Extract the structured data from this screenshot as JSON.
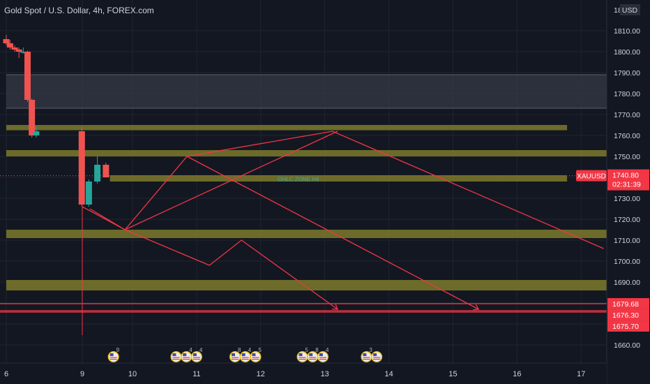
{
  "header": {
    "title": "Gold Spot / U.S. Dollar, 4h, FOREX.com",
    "currency": "USD",
    "axis_top_label": "18"
  },
  "colors": {
    "background": "#131722",
    "grid": "#1f2430",
    "axis_text": "#d1d4dc",
    "bull": "#26a69a",
    "bear": "#ef5350",
    "zone": "#7d7a2a",
    "supply_zone": "#363a45",
    "drawing": "#f23645",
    "label_red": "#f23645",
    "zone_text": "#2db2b7"
  },
  "chart_data": {
    "type": "candlestick",
    "symbol": "XAUUSD",
    "title": "Gold Spot / U.S. Dollar, 4h, FOREX.com",
    "ylim": [
      1652,
      1816
    ],
    "xlim": [
      6.0,
      17.35
    ],
    "y_ticks": [
      1660,
      1670,
      1680,
      1690,
      1700,
      1710,
      1720,
      1730,
      1740,
      1750,
      1760,
      1770,
      1780,
      1790,
      1800,
      1810
    ],
    "y_tick_labels": [
      "1660.00",
      "1670.00",
      "1680.00",
      "1690.00",
      "1700.00",
      "1710.00",
      "1720.00",
      "1730.00",
      "1740.00",
      "1750.00",
      "1760.00",
      "1770.00",
      "1780.00",
      "1790.00",
      "1800.00",
      "1810.00"
    ],
    "x_ticks": [
      6,
      9,
      10,
      11,
      12,
      13,
      14,
      15,
      16,
      17
    ],
    "x_tick_labels": [
      "6",
      "9",
      "10",
      "11",
      "12",
      "13",
      "14",
      "15",
      "16",
      "17"
    ],
    "candles": [
      {
        "x": 6.0,
        "open": 1806,
        "high": 1808,
        "low": 1803,
        "close": 1804
      },
      {
        "x": 6.15,
        "open": 1804,
        "high": 1805.5,
        "low": 1801,
        "close": 1802
      },
      {
        "x": 6.33,
        "open": 1802,
        "high": 1803,
        "low": 1800,
        "close": 1801
      },
      {
        "x": 6.5,
        "open": 1801,
        "high": 1802,
        "low": 1797,
        "close": 1800
      },
      {
        "x": 6.67,
        "open": 1800,
        "high": 1802,
        "low": 1799,
        "close": 1800
      },
      {
        "x": 6.84,
        "open": 1800,
        "high": 1800.5,
        "low": 1776,
        "close": 1777
      },
      {
        "x": 7.01,
        "open": 1777,
        "high": 1777.5,
        "low": 1759,
        "close": 1760
      },
      {
        "x": 7.18,
        "open": 1760,
        "high": 1764,
        "low": 1759,
        "close": 1762
      },
      {
        "x": 8.98,
        "open": 1762,
        "high": 1764,
        "low": 1726,
        "close": 1727
      },
      {
        "x": 9.13,
        "open": 1727,
        "high": 1739,
        "low": 1726,
        "close": 1738
      },
      {
        "x": 9.3,
        "open": 1738,
        "high": 1750,
        "low": 1737,
        "close": 1746
      },
      {
        "x": 9.47,
        "open": 1746,
        "high": 1747,
        "low": 1740,
        "close": 1740
      }
    ],
    "zones": [
      {
        "top": 1789,
        "bottom": 1773,
        "color": "supply",
        "x_start": 6.0
      },
      {
        "top": 1765,
        "bottom": 1762.5,
        "color": "zone",
        "x_start": 6.0,
        "x_end": 16.78
      },
      {
        "top": 1753,
        "bottom": 1750,
        "color": "zone",
        "x_start": 6.0
      },
      {
        "top": 1741,
        "bottom": 1738,
        "color": "zone",
        "x_start": 9.55,
        "x_end": 16.78
      },
      {
        "top": 1715,
        "bottom": 1711,
        "color": "zone",
        "x_start": 6.0
      },
      {
        "top": 1691,
        "bottom": 1686,
        "color": "zone",
        "x_start": 6.0
      }
    ],
    "horizontal_lines": [
      {
        "y": 1679.68,
        "label": "1679.68"
      },
      {
        "y": 1676.3,
        "label": "1676.30"
      },
      {
        "y": 1675.7,
        "label": "1675.70"
      }
    ],
    "zone_label": "OHLC ZONE H4",
    "last_price": {
      "symbol": "XAUUSD",
      "value": "1740.80",
      "countdown": "02:31:39",
      "y": 1740.8
    },
    "drawings": [
      {
        "points": [
          [
            9.0,
            1726
          ],
          [
            9.85,
            1715
          ],
          [
            10.85,
            1750
          ],
          [
            13.12,
            1762
          ],
          [
            17.35,
            1706
          ]
        ]
      },
      {
        "points": [
          [
            9.15,
            1725
          ],
          [
            9.85,
            1715
          ],
          [
            13.2,
            1762
          ]
        ]
      },
      {
        "points": [
          [
            9.85,
            1715
          ],
          [
            11.2,
            1698
          ],
          [
            11.7,
            1710
          ],
          [
            13.2,
            1677
          ]
        ],
        "arrow": true
      },
      {
        "points": [
          [
            10.85,
            1750
          ],
          [
            15.4,
            1677
          ]
        ],
        "arrow": true
      }
    ],
    "event_markers": [
      {
        "x": 9.62,
        "count": "9"
      },
      {
        "x": 10.68,
        "count": ""
      },
      {
        "x": 10.84,
        "count": "4"
      },
      {
        "x": 11.0,
        "count": "4"
      },
      {
        "x": 11.6,
        "count": "8"
      },
      {
        "x": 11.76,
        "count": "4"
      },
      {
        "x": 11.92,
        "count": "5"
      },
      {
        "x": 12.65,
        "count": "5"
      },
      {
        "x": 12.81,
        "count": "8"
      },
      {
        "x": 12.97,
        "count": "4"
      },
      {
        "x": 13.65,
        "count": "3"
      },
      {
        "x": 13.81,
        "count": ""
      }
    ]
  }
}
